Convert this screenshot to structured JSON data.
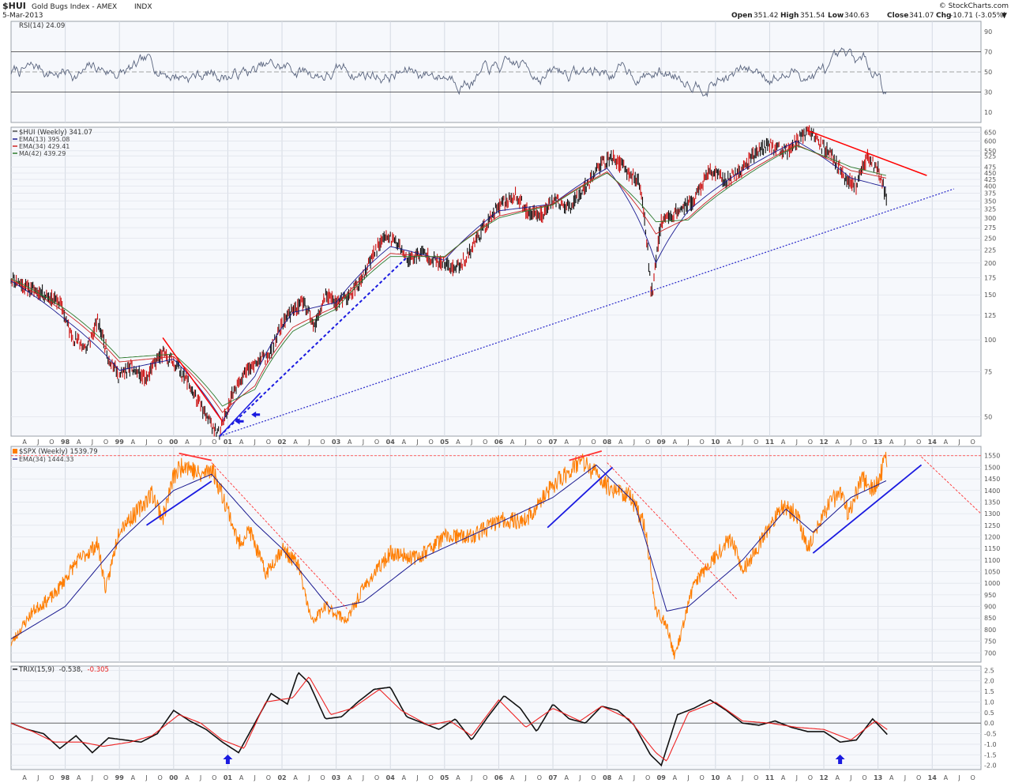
{
  "header": {
    "symbol": "$HUI",
    "name": "Gold Bugs Index - AMEX",
    "exchange": "INDX",
    "date": "5-Mar-2013",
    "brand": "© StockCharts.com",
    "open_label": "Open",
    "open": "351.42",
    "high_label": "High",
    "high": "351.54",
    "low_label": "Low",
    "low": "340.63",
    "close_label": "Close",
    "close": "341.07",
    "chg_label": "Chg",
    "chg": "-10.71 (-3.05%)",
    "chg_arrow": "▼"
  },
  "chart_data": [
    {
      "type": "line",
      "pane": "rsi",
      "title": "RSI(14) 24.09",
      "yticks": [
        10,
        30,
        50,
        70,
        90
      ],
      "ylim": [
        0,
        100
      ],
      "overbought": 70,
      "oversold": 30,
      "center": 50,
      "colors": {
        "line": "#59647e",
        "fill": "#5d8a8a",
        "bands": "#333333"
      }
    },
    {
      "type": "line",
      "pane": "hui",
      "scale": "log",
      "title": "$HUI (Weekly) 341.07",
      "legend": [
        {
          "label": "EMA(13) 395.08",
          "color": "#1a1a90"
        },
        {
          "label": "EMA(34) 429.41",
          "color": "#cc2222"
        },
        {
          "label": "MA(42) 439.29",
          "color": "#2d7a2d"
        }
      ],
      "yticks": [
        50,
        75,
        100,
        125,
        150,
        175,
        200,
        225,
        250,
        275,
        300,
        325,
        350,
        375,
        400,
        425,
        450,
        475,
        525,
        550,
        600,
        650
      ],
      "ylim": [
        42,
        680
      ],
      "xlim": [
        1997.0,
        2014.9
      ],
      "series": [
        {
          "name": "$HUI",
          "color": "#111111",
          "x": [
            1997.0,
            1997.3,
            1997.6,
            1997.9,
            1998.1,
            1998.4,
            1998.6,
            1998.8,
            1999.0,
            1999.2,
            1999.5,
            1999.7,
            1999.8,
            2000.0,
            2000.2,
            2000.4,
            2000.6,
            2000.85,
            2001.0,
            2001.2,
            2001.5,
            2001.8,
            2002.0,
            2002.2,
            2002.4,
            2002.6,
            2002.8,
            2003.0,
            2003.2,
            2003.5,
            2003.8,
            2003.95,
            2004.2,
            2004.3,
            2004.6,
            2004.9,
            2005.2,
            2005.4,
            2005.8,
            2006.0,
            2006.3,
            2006.5,
            2006.8,
            2007.0,
            2007.3,
            2007.6,
            2007.9,
            2008.1,
            2008.4,
            2008.6,
            2008.8,
            2008.85,
            2009.0,
            2009.3,
            2009.6,
            2009.9,
            2010.2,
            2010.5,
            2010.8,
            2011.0,
            2011.3,
            2011.6,
            2011.7,
            2011.9,
            2012.1,
            2012.4,
            2012.6,
            2012.8,
            2013.0,
            2013.17
          ],
          "y": [
            175,
            160,
            152,
            140,
            105,
            92,
            118,
            85,
            72,
            78,
            70,
            84,
            88,
            82,
            72,
            60,
            50,
            42,
            55,
            70,
            80,
            90,
            115,
            130,
            140,
            110,
            150,
            140,
            145,
            175,
            240,
            255,
            230,
            205,
            220,
            200,
            190,
            210,
            290,
            330,
            370,
            320,
            310,
            350,
            330,
            400,
            490,
            520,
            450,
            410,
            160,
            160,
            290,
            320,
            350,
            460,
            420,
            470,
            560,
            580,
            540,
            630,
            660,
            590,
            540,
            430,
            400,
            520,
            470,
            341
          ]
        },
        {
          "name": "EMA(13)",
          "color": "#1a1a90",
          "x": [
            1997.0,
            1998.0,
            1999.0,
            2000.0,
            2000.9,
            2001.5,
            2002.2,
            2003.0,
            2004.0,
            2005.0,
            2006.0,
            2007.0,
            2008.0,
            2008.9,
            2009.5,
            2010.5,
            2011.5,
            2012.5,
            2013.17
          ],
          "y": [
            170,
            120,
            76,
            84,
            48,
            72,
            128,
            140,
            232,
            205,
            320,
            340,
            470,
            200,
            320,
            460,
            600,
            430,
            395
          ]
        },
        {
          "name": "EMA(34)",
          "color": "#cc2222",
          "x": [
            1997.0,
            1998.0,
            1999.0,
            2000.0,
            2000.9,
            2001.5,
            2002.2,
            2003.0,
            2004.0,
            2005.0,
            2006.0,
            2007.0,
            2008.0,
            2008.9,
            2009.5,
            2010.5,
            2011.5,
            2012.5,
            2013.17
          ],
          "y": [
            172,
            128,
            82,
            86,
            52,
            66,
            112,
            135,
            218,
            210,
            305,
            340,
            455,
            260,
            300,
            440,
            580,
            460,
            429
          ]
        },
        {
          "name": "MA(42)",
          "color": "#2d7a2d",
          "x": [
            1997.0,
            1998.0,
            1999.0,
            2000.0,
            2000.9,
            2001.5,
            2002.2,
            2003.0,
            2004.0,
            2005.0,
            2006.0,
            2007.0,
            2008.0,
            2008.9,
            2009.5,
            2010.5,
            2011.5,
            2012.5,
            2013.17
          ],
          "y": [
            174,
            132,
            85,
            88,
            55,
            64,
            108,
            132,
            212,
            212,
            300,
            338,
            450,
            290,
            295,
            430,
            575,
            475,
            439
          ]
        }
      ],
      "annotations": [
        {
          "kind": "trendline",
          "color": "#ff0000",
          "x": [
            2011.7,
            2013.9
          ],
          "y": [
            660,
            440
          ]
        },
        {
          "kind": "trendline",
          "color": "#ff0000",
          "x": [
            1999.8,
            2000.9
          ],
          "y": [
            102,
            48
          ]
        },
        {
          "kind": "trendline-dotted",
          "color": "#3333cc",
          "x": [
            2000.85,
            2014.4
          ],
          "y": [
            42,
            390
          ]
        },
        {
          "kind": "trendline-dashed",
          "color": "#1a1ae0",
          "x": [
            2000.85,
            2004.3
          ],
          "y": [
            42,
            210
          ]
        },
        {
          "kind": "trendline",
          "color": "#1a1ae0",
          "x": [
            2000.85,
            2001.6
          ],
          "y": [
            42,
            62
          ]
        }
      ]
    },
    {
      "type": "line",
      "pane": "spx",
      "title": "$SPX (Weekly) 1539.79",
      "legend": [
        {
          "label": "EMA(34) 1444.33",
          "color": "#1a1a90"
        }
      ],
      "yticks": [
        700,
        750,
        800,
        850,
        900,
        950,
        1000,
        1050,
        1100,
        1150,
        1200,
        1250,
        1300,
        1350,
        1400,
        1450,
        1500,
        1550
      ],
      "ylim": [
        660,
        1590
      ],
      "xlim": [
        1997.0,
        2014.9
      ],
      "series": [
        {
          "name": "$SPX",
          "color": "#ff7d00",
          "x": [
            1997.0,
            1997.4,
            1997.8,
            1998.2,
            1998.6,
            1998.75,
            1999.0,
            1999.3,
            1999.6,
            1999.8,
            2000.0,
            2000.2,
            2000.5,
            2000.7,
            2001.0,
            2001.2,
            2001.4,
            2001.7,
            2002.0,
            2002.3,
            2002.55,
            2002.8,
            2003.2,
            2003.5,
            2004.0,
            2004.5,
            2005.0,
            2005.5,
            2006.0,
            2006.5,
            2007.0,
            2007.5,
            2007.8,
            2008.0,
            2008.4,
            2008.7,
            2008.9,
            2009.1,
            2009.25,
            2009.6,
            2010.0,
            2010.3,
            2010.5,
            2010.9,
            2011.2,
            2011.5,
            2011.7,
            2012.0,
            2012.3,
            2012.45,
            2012.7,
            2012.9,
            2013.17
          ],
          "y": [
            740,
            880,
            950,
            1090,
            1170,
            970,
            1240,
            1300,
            1390,
            1280,
            1460,
            1520,
            1460,
            1500,
            1320,
            1170,
            1230,
            1040,
            1150,
            1080,
            830,
            900,
            840,
            980,
            1130,
            1110,
            1200,
            1200,
            1270,
            1270,
            1420,
            1530,
            1470,
            1420,
            1380,
            1250,
            880,
            820,
            680,
            1000,
            1120,
            1200,
            1050,
            1200,
            1330,
            1300,
            1150,
            1300,
            1400,
            1300,
            1450,
            1400,
            1539
          ]
        },
        {
          "name": "EMA(34)",
          "color": "#1a1a90",
          "x": [
            1997.0,
            1998.0,
            1999.0,
            2000.0,
            2000.7,
            2001.5,
            2002.0,
            2002.9,
            2003.5,
            2004.5,
            2006.0,
            2007.0,
            2007.8,
            2008.5,
            2009.1,
            2009.5,
            2010.5,
            2011.3,
            2011.8,
            2012.5,
            2013.17
          ],
          "y": [
            760,
            900,
            1180,
            1400,
            1470,
            1260,
            1150,
            890,
            920,
            1100,
            1260,
            1370,
            1510,
            1350,
            880,
            900,
            1100,
            1320,
            1220,
            1370,
            1444
          ]
        }
      ],
      "annotations": [
        {
          "kind": "hline-dashed",
          "color": "#ff3333",
          "y": 1550
        },
        {
          "kind": "trendline",
          "color": "#ff3333",
          "x": [
            2000.1,
            2000.7
          ],
          "y": [
            1560,
            1530
          ]
        },
        {
          "kind": "trendline",
          "color": "#1a1ae0",
          "x": [
            1999.5,
            2000.7
          ],
          "y": [
            1250,
            1440
          ]
        },
        {
          "kind": "trendline-dashed",
          "color": "#ff3333",
          "x": [
            2000.7,
            2003.2
          ],
          "y": [
            1520,
            890
          ]
        },
        {
          "kind": "trendline",
          "color": "#ff3333",
          "x": [
            2007.3,
            2007.9
          ],
          "y": [
            1530,
            1570
          ]
        },
        {
          "kind": "trendline",
          "color": "#1a1ae0",
          "x": [
            2006.9,
            2008.1
          ],
          "y": [
            1240,
            1500
          ]
        },
        {
          "kind": "trendline-dashed",
          "color": "#ff3333",
          "x": [
            2008.0,
            2010.4
          ],
          "y": [
            1520,
            930
          ]
        },
        {
          "kind": "trendline",
          "color": "#1a1ae0",
          "x": [
            2011.8,
            2013.8
          ],
          "y": [
            1130,
            1510
          ]
        },
        {
          "kind": "trendline-dashed",
          "color": "#ff3333",
          "x": [
            2013.8,
            2014.9
          ],
          "y": [
            1545,
            1300
          ]
        }
      ]
    },
    {
      "type": "line",
      "pane": "trix",
      "title_prefix": "TRIX(15,9)",
      "title_value": "-0.538,",
      "title_signal": "-0.305",
      "yticks": [
        2.5,
        2.0,
        1.5,
        1.0,
        0.5,
        0.0,
        -0.5,
        -1.0,
        -1.5,
        -2.0
      ],
      "ylim": [
        -2.2,
        2.7
      ],
      "xlim": [
        1997.0,
        2014.9
      ],
      "series": [
        {
          "name": "TRIX",
          "color": "#111111",
          "x": [
            1997.0,
            1997.3,
            1997.6,
            1997.9,
            1998.2,
            1998.5,
            1998.8,
            1999.1,
            1999.4,
            1999.7,
            2000.0,
            2000.3,
            2000.6,
            2000.9,
            2001.2,
            2001.5,
            2001.8,
            2002.1,
            2002.3,
            2002.5,
            2002.8,
            2003.1,
            2003.4,
            2003.7,
            2004.0,
            2004.3,
            2004.6,
            2004.9,
            2005.2,
            2005.5,
            2005.8,
            2006.1,
            2006.4,
            2006.7,
            2007.0,
            2007.3,
            2007.6,
            2007.9,
            2008.2,
            2008.5,
            2008.8,
            2009.0,
            2009.3,
            2009.6,
            2009.9,
            2010.2,
            2010.5,
            2010.8,
            2011.1,
            2011.4,
            2011.7,
            2012.0,
            2012.3,
            2012.6,
            2012.9,
            2013.17
          ],
          "y": [
            0.0,
            -0.3,
            -0.5,
            -1.2,
            -0.6,
            -1.4,
            -0.7,
            -0.8,
            -0.9,
            -0.5,
            0.6,
            0.1,
            -0.3,
            -0.9,
            -1.4,
            0.0,
            1.4,
            0.9,
            2.4,
            1.9,
            0.2,
            0.3,
            1.0,
            1.6,
            1.7,
            0.3,
            0.0,
            -0.3,
            0.2,
            -0.8,
            0.3,
            1.3,
            0.7,
            -0.4,
            0.9,
            0.2,
            0.0,
            0.8,
            0.6,
            -0.1,
            -1.5,
            -2.0,
            0.4,
            0.7,
            1.1,
            0.6,
            0.0,
            -0.1,
            0.1,
            -0.2,
            -0.4,
            -0.4,
            -0.9,
            -0.8,
            0.2,
            -0.538
          ]
        },
        {
          "name": "Signal",
          "color": "#ee2222",
          "x": [
            1997.0,
            1997.4,
            1997.8,
            1998.3,
            1998.7,
            1999.2,
            1999.6,
            2000.1,
            2000.5,
            2000.9,
            2001.3,
            2001.7,
            2002.2,
            2002.5,
            2002.9,
            2003.3,
            2003.8,
            2004.2,
            2004.7,
            2005.1,
            2005.5,
            2006.0,
            2006.5,
            2007.0,
            2007.5,
            2007.9,
            2008.4,
            2008.9,
            2009.1,
            2009.5,
            2010.0,
            2010.5,
            2011.0,
            2011.5,
            2012.0,
            2012.5,
            2012.95,
            2013.17
          ],
          "y": [
            0.0,
            -0.4,
            -0.9,
            -0.9,
            -1.1,
            -0.9,
            -0.6,
            0.4,
            0.0,
            -0.8,
            -1.2,
            1.0,
            1.2,
            2.2,
            0.4,
            0.7,
            1.6,
            0.6,
            -0.1,
            0.1,
            -0.6,
            1.1,
            -0.2,
            0.7,
            0.1,
            0.8,
            0.2,
            -1.4,
            -1.8,
            0.5,
            1.0,
            0.1,
            0.0,
            -0.2,
            -0.3,
            -0.8,
            0.1,
            -0.305
          ]
        }
      ],
      "markers": [
        {
          "kind": "up-arrow",
          "color": "#1a1ae0",
          "x": 2001.0
        },
        {
          "kind": "up-arrow",
          "color": "#1a1ae0",
          "x": 2012.3
        }
      ]
    }
  ],
  "x_axis": {
    "year_labels": [
      "98",
      "99",
      "00",
      "01",
      "02",
      "03",
      "04",
      "05",
      "06",
      "07",
      "08",
      "09",
      "10",
      "11",
      "12",
      "13",
      "14"
    ],
    "quarter_labels": [
      "A",
      "J",
      "O"
    ],
    "leading_labels": [
      "A",
      "J",
      "O"
    ]
  }
}
